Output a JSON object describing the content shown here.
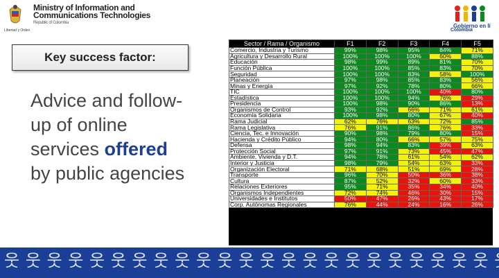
{
  "header": {
    "ministry_line1": "Ministry of Information and",
    "ministry_line2": "Communications Technologies",
    "ministry_line3": "Republic of Colombia",
    "crest_caption": "Libertad y Orden",
    "gel_text": "Colombia"
  },
  "key_success_factor": "Key success factor:",
  "description": {
    "part1": "Advice and follow-up of online services",
    "highlight": "offered",
    "part2": "by public agencies"
  },
  "table": {
    "headers": [
      "Sector / Rama / Organismo",
      "F1",
      "F2",
      "F3",
      "F4",
      "F5"
    ],
    "rows": [
      {
        "name": "Comercio, Industria y Turismo",
        "vals": [
          "99%",
          "98%",
          "95%",
          "84%",
          "71%"
        ],
        "cls": [
          "g",
          "g",
          "g",
          "g",
          "y"
        ]
      },
      {
        "name": "Agricultura y Desarrollo Rural",
        "vals": [
          "100%",
          "100%",
          "100%",
          "60%",
          "88%"
        ],
        "cls": [
          "g",
          "g",
          "g",
          "y",
          "g"
        ]
      },
      {
        "name": "Educación",
        "vals": [
          "98%",
          "99%",
          "89%",
          "81%",
          "70%"
        ],
        "cls": [
          "g",
          "g",
          "g",
          "g",
          "y"
        ]
      },
      {
        "name": "Función Pública",
        "vals": [
          "100%",
          "100%",
          "85%",
          "83%",
          "70%"
        ],
        "cls": [
          "g",
          "g",
          "g",
          "g",
          "y"
        ]
      },
      {
        "name": "Seguridad",
        "vals": [
          "100%",
          "100%",
          "83%",
          "58%",
          "100%"
        ],
        "cls": [
          "g",
          "g",
          "g",
          "y",
          "g"
        ]
      },
      {
        "name": "Planeación",
        "vals": [
          "97%",
          "98%",
          "85%",
          "83%",
          "56%"
        ],
        "cls": [
          "g",
          "g",
          "g",
          "g",
          "y"
        ]
      },
      {
        "name": "Minas y Energía",
        "vals": [
          "97%",
          "92%",
          "78%",
          "80%",
          "66%"
        ],
        "cls": [
          "g",
          "g",
          "g",
          "g",
          "y"
        ]
      },
      {
        "name": "TIC",
        "vals": [
          "100%",
          "100%",
          "100%",
          "40%",
          "80%"
        ],
        "cls": [
          "g",
          "g",
          "g",
          "r",
          "g"
        ]
      },
      {
        "name": "Estadística",
        "vals": [
          "100%",
          "100%",
          "94%",
          "76%",
          "29%"
        ],
        "cls": [
          "g",
          "g",
          "g",
          "y",
          "r"
        ]
      },
      {
        "name": "Presidencia",
        "vals": [
          "100%",
          "98%",
          "90%",
          "86%",
          "13%"
        ],
        "cls": [
          "g",
          "g",
          "g",
          "g",
          "r"
        ]
      },
      {
        "name": "Organismos de Control",
        "vals": [
          "93%",
          "92%",
          "66%",
          "71%",
          "61%"
        ],
        "cls": [
          "g",
          "g",
          "y",
          "y",
          "y"
        ]
      },
      {
        "name": "Economía Solidaria",
        "vals": [
          "100%",
          "98%",
          "80%",
          "67%",
          "40%"
        ],
        "cls": [
          "g",
          "g",
          "g",
          "y",
          "r"
        ]
      },
      {
        "name": "Rama Judicial",
        "vals": [
          "62%",
          "76%",
          "63%",
          "72%",
          "85%"
        ],
        "cls": [
          "y",
          "y",
          "y",
          "y",
          "g"
        ]
      },
      {
        "name": "Rama Legislativa",
        "vals": [
          "76%",
          "91%",
          "86%",
          "76%",
          "33%"
        ],
        "cls": [
          "y",
          "g",
          "g",
          "y",
          "r"
        ]
      },
      {
        "name": "Ciencia, Tec. e Innovación",
        "vals": [
          "90%",
          "98%",
          "79%",
          "80%",
          "15%"
        ],
        "cls": [
          "g",
          "g",
          "g",
          "g",
          "r"
        ]
      },
      {
        "name": "Hacienda y Crédito Público",
        "vals": [
          "94%",
          "80%",
          "66%",
          "57%",
          "75%"
        ],
        "cls": [
          "g",
          "g",
          "y",
          "y",
          "y"
        ]
      },
      {
        "name": "Defensa",
        "vals": [
          "98%",
          "94%",
          "83%",
          "39%",
          "63%"
        ],
        "cls": [
          "g",
          "g",
          "g",
          "r",
          "y"
        ]
      },
      {
        "name": "Protección Social",
        "vals": [
          "97%",
          "91%",
          "73%",
          "45%",
          "47%"
        ],
        "cls": [
          "g",
          "g",
          "y",
          "r",
          "r"
        ]
      },
      {
        "name": "Ambiente, Vivienda y D.T.",
        "vals": [
          "94%",
          "78%",
          "61%",
          "54%",
          "62%"
        ],
        "cls": [
          "g",
          "g",
          "y",
          "y",
          "y"
        ]
      },
      {
        "name": "Interior y Justicia",
        "vals": [
          "98%",
          "79%",
          "54%",
          "63%",
          "33%"
        ],
        "cls": [
          "g",
          "g",
          "y",
          "y",
          "r"
        ]
      },
      {
        "name": "Organización Electoral",
        "vals": [
          "71%",
          "68%",
          "51%",
          "69%",
          "28%"
        ],
        "cls": [
          "y",
          "y",
          "y",
          "y",
          "r"
        ]
      },
      {
        "name": "Transporte",
        "vals": [
          "96%",
          "70%",
          "50%",
          "36%",
          "38%"
        ],
        "cls": [
          "g",
          "y",
          "r",
          "r",
          "r"
        ]
      },
      {
        "name": "Cultura",
        "vals": [
          "87%",
          "52%",
          "32%",
          "60%",
          "33%"
        ],
        "cls": [
          "g",
          "y",
          "r",
          "y",
          "r"
        ]
      },
      {
        "name": "Relaciones Exteriores",
        "vals": [
          "95%",
          "71%",
          "35%",
          "34%",
          "40%"
        ],
        "cls": [
          "g",
          "y",
          "r",
          "r",
          "r"
        ]
      },
      {
        "name": "Organismos Independientes",
        "vals": [
          "72%",
          "74%",
          "46%",
          "30%",
          "15%"
        ],
        "cls": [
          "y",
          "y",
          "r",
          "r",
          "r"
        ]
      },
      {
        "name": "Universidades e Institutos",
        "vals": [
          "50%",
          "47%",
          "26%",
          "43%",
          "17%"
        ],
        "cls": [
          "r",
          "r",
          "r",
          "r",
          "r"
        ]
      },
      {
        "name": "Corp. Autónomas Regionales",
        "vals": [
          "76%",
          "44%",
          "24%",
          "16%",
          "26%"
        ],
        "cls": [
          "y",
          "r",
          "r",
          "r",
          "r"
        ]
      }
    ]
  },
  "footer": {
    "pattern": "웃 웃 웃 웃 웃 웃 웃 웃 웃 웃 웃 웃 웃 웃 웃 웃 웃 웃 웃 웃 웃 웃 웃 웃 웃 웃 웃 웃 웃 웃"
  },
  "colors": {
    "green": "#0a8a1c",
    "yellow": "#f2f20a",
    "red": "#e8130a",
    "footer_blue": "#1b3f97"
  }
}
